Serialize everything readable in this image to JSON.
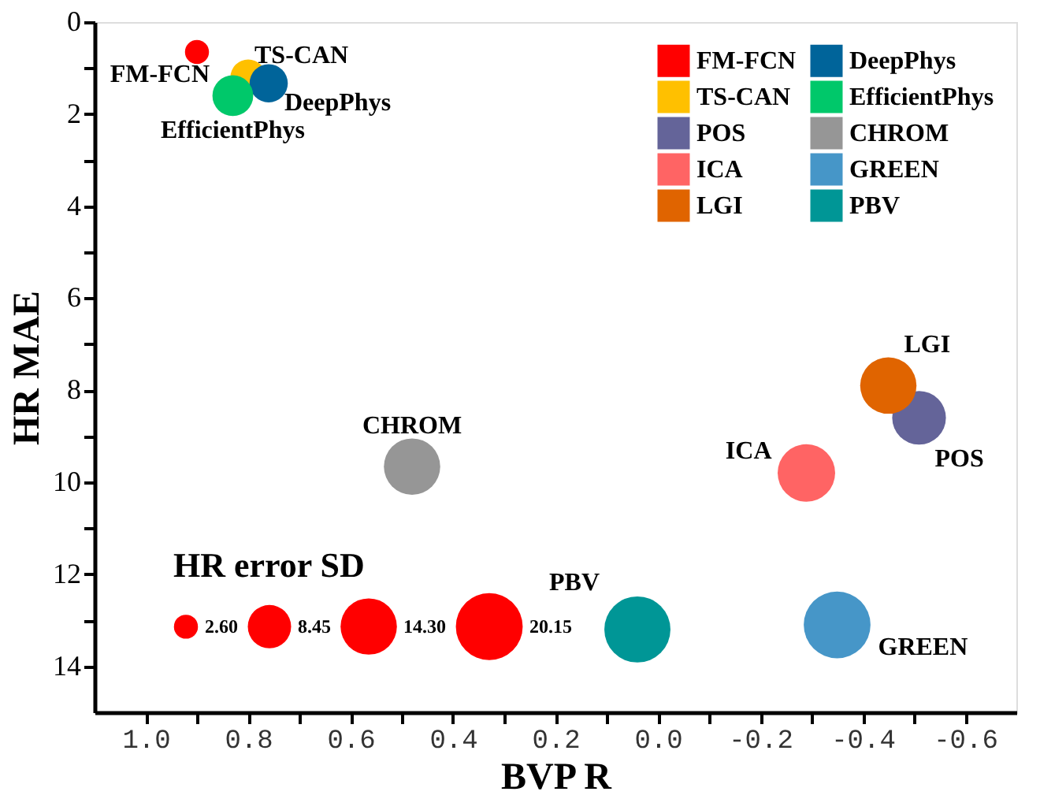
{
  "chart_data": {
    "type": "bubble",
    "xlabel": "BVP R",
    "ylabel": "HR MAE",
    "legend_title": "HR error SD",
    "xlim": [
      1.1,
      -0.7
    ],
    "ylim": [
      15,
      0
    ],
    "xticks": [
      {
        "value": 1.0,
        "label": "1.0"
      },
      {
        "value": 0.9,
        "label": null
      },
      {
        "value": 0.8,
        "label": "0.8"
      },
      {
        "value": 0.7,
        "label": null
      },
      {
        "value": 0.6,
        "label": "0.6"
      },
      {
        "value": 0.5,
        "label": null
      },
      {
        "value": 0.4,
        "label": "0.4"
      },
      {
        "value": 0.3,
        "label": null
      },
      {
        "value": 0.2,
        "label": "0.2"
      },
      {
        "value": 0.1,
        "label": null
      },
      {
        "value": 0.0,
        "label": "0.0"
      },
      {
        "value": -0.1,
        "label": null
      },
      {
        "value": -0.2,
        "label": "-0.2"
      },
      {
        "value": -0.3,
        "label": null
      },
      {
        "value": -0.4,
        "label": "-0.4"
      },
      {
        "value": -0.5,
        "label": null
      },
      {
        "value": -0.6,
        "label": "-0.6"
      }
    ],
    "yticks": [
      0,
      {
        "value": 1,
        "label": null
      },
      2,
      {
        "value": 3,
        "label": null
      },
      4,
      {
        "value": 5,
        "label": null
      },
      6,
      {
        "value": 7,
        "label": null
      },
      8,
      {
        "value": 9,
        "label": null
      },
      10,
      {
        "value": 11,
        "label": null
      },
      12,
      {
        "value": 13,
        "label": null
      },
      14
    ],
    "size_legend": [
      {
        "value": 2.6,
        "label": "2.60"
      },
      {
        "value": 8.45,
        "label": "8.45"
      },
      {
        "value": 14.3,
        "label": "14.30"
      },
      {
        "value": 20.15,
        "label": "20.15"
      }
    ],
    "grid": false,
    "legend": "top right",
    "marker": "circle",
    "series": [
      {
        "name": "FM-FCN",
        "color": "#ff0000",
        "x": [
          0.9
        ],
        "values": [
          0.65
        ],
        "sizes": [
          2.6
        ]
      },
      {
        "name": "TS-CAN",
        "color": "#ffc000",
        "x": [
          0.8
        ],
        "values": [
          1.2
        ],
        "sizes": [
          5.7
        ]
      },
      {
        "name": "POS",
        "color": "#646499",
        "x": [
          -0.51
        ],
        "values": [
          8.6
        ],
        "sizes": [
          13
        ]
      },
      {
        "name": "ICA",
        "color": "#ff6464",
        "x": [
          -0.29
        ],
        "values": [
          9.8
        ],
        "sizes": [
          14.9
        ]
      },
      {
        "name": "LGI",
        "color": "#e06400",
        "x": [
          -0.45
        ],
        "values": [
          7.9
        ],
        "sizes": [
          14.3
        ]
      },
      {
        "name": "DeepPhys",
        "color": "#00649a",
        "x": [
          0.76
        ],
        "values": [
          1.33
        ],
        "sizes": [
          6.6
        ]
      },
      {
        "name": "EfficientPhys",
        "color": "#00c86a",
        "x": [
          0.83
        ],
        "values": [
          1.6
        ],
        "sizes": [
          7.5
        ]
      },
      {
        "name": "CHROM",
        "color": "#969696",
        "x": [
          0.48
        ],
        "values": [
          9.66
        ],
        "sizes": [
          14.3
        ]
      },
      {
        "name": "GREEN",
        "color": "#4696c8",
        "x": [
          -0.35
        ],
        "values": [
          13.1
        ],
        "sizes": [
          20.1
        ]
      },
      {
        "name": "PBV",
        "color": "#009696",
        "x": [
          0.04
        ],
        "values": [
          13.2
        ],
        "sizes": [
          19.7
        ]
      }
    ]
  }
}
